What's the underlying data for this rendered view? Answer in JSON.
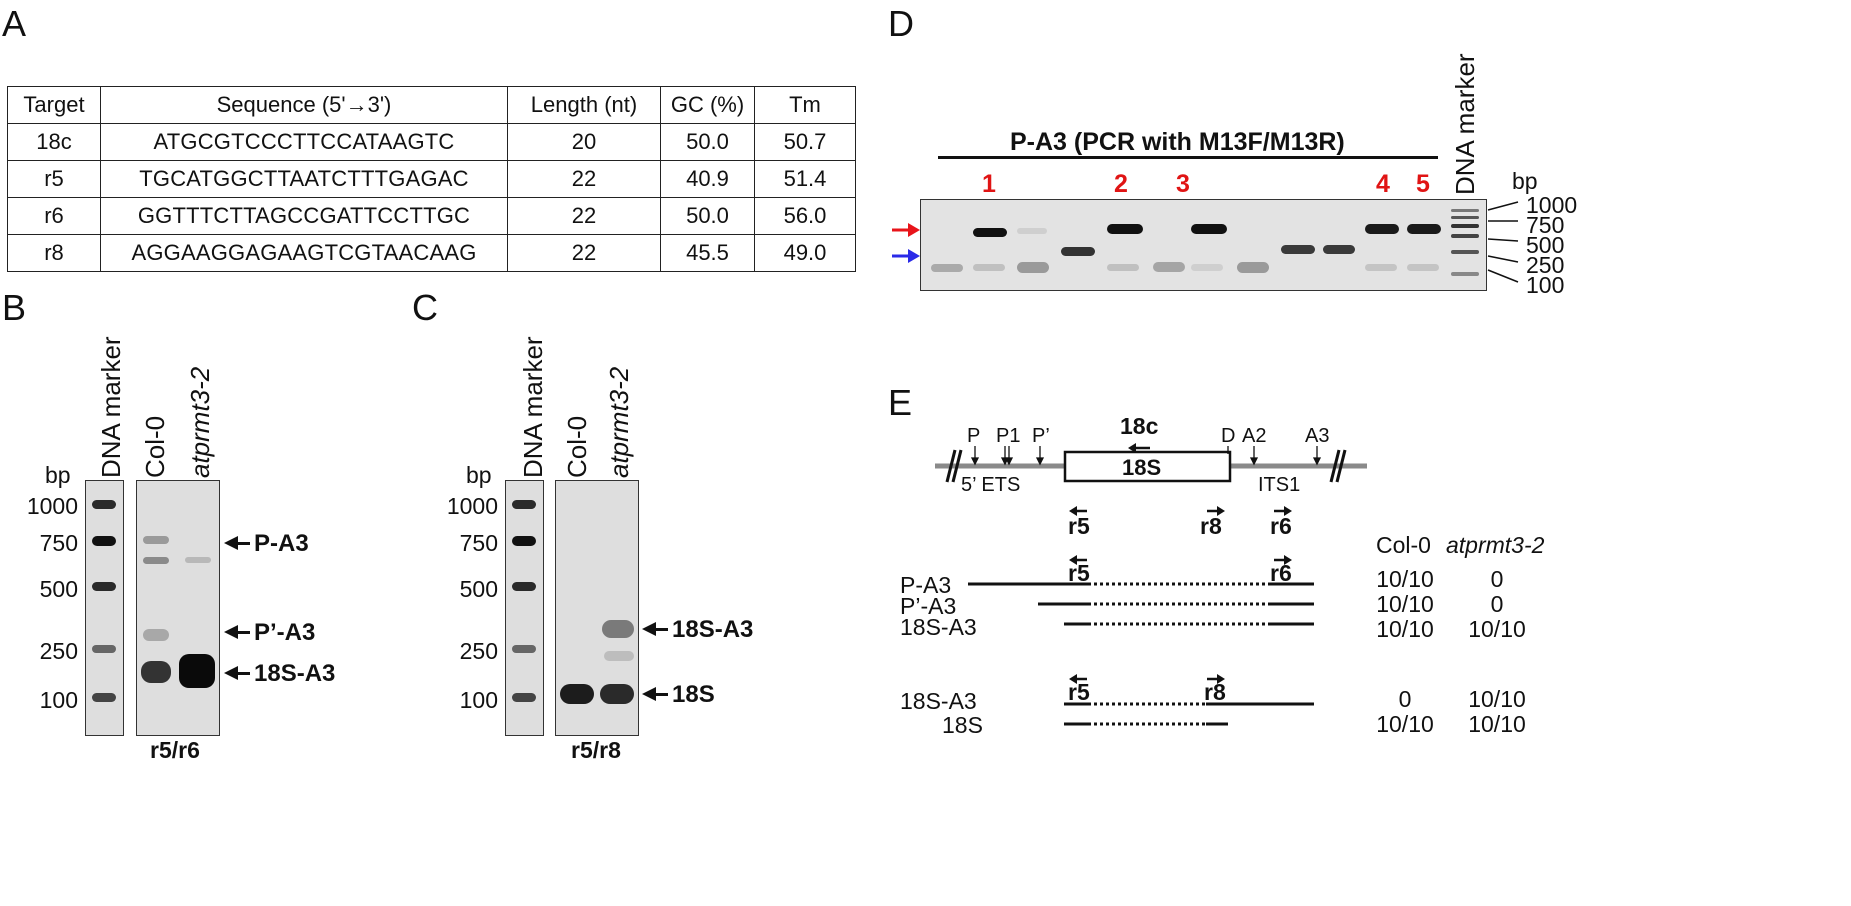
{
  "panels": {
    "A": "A",
    "B": "B",
    "C": "C",
    "D": "D",
    "E": "E"
  },
  "table": {
    "headers": [
      "Target",
      "Sequence (5'→3')",
      "Length (nt)",
      "GC (%)",
      "Tm"
    ],
    "rows": [
      [
        "18c",
        "ATGCGTCCCTTCCATAAGTC",
        "20",
        "50.0",
        "50.7"
      ],
      [
        "r5",
        "TGCATGGCTTAATCTTTGAGAC",
        "22",
        "40.9",
        "51.4"
      ],
      [
        "r6",
        "GGTTTCTTAGCCGATTCCTTGC",
        "22",
        "50.0",
        "56.0"
      ],
      [
        "r8",
        "AGGAAGGAGAAGTCGTAACAAG",
        "22",
        "45.5",
        "49.0"
      ]
    ]
  },
  "gel_common": {
    "marker_label": "DNA marker",
    "bp_label": "bp",
    "ladder": [
      "1000",
      "750",
      "500",
      "250",
      "100"
    ],
    "lane1": "Col-0",
    "lane2": "atprmt3-2"
  },
  "panel_b": {
    "bands": [
      "P-A3",
      "P’-A3",
      "18S-A3"
    ],
    "primer_pair": "r5/r6"
  },
  "panel_c": {
    "bands": [
      "18S-A3",
      "18S"
    ],
    "primer_pair": "r5/r8"
  },
  "panel_d": {
    "title": "P-A3 (PCR with M13F/M13R)",
    "lane_numbers": [
      "1",
      "2",
      "3",
      "4",
      "5"
    ],
    "marker_label": "DNA marker",
    "bp_label": "bp",
    "ladder": [
      "1000",
      "750",
      "500",
      "250",
      "100"
    ],
    "arrow_colors": {
      "upper": "#e8141a",
      "lower": "#2a2ae8"
    }
  },
  "panel_e": {
    "sites": [
      "P",
      "P1",
      "P’",
      "D",
      "A2",
      "A3"
    ],
    "probe": "18c",
    "gene_box": "18S",
    "region_left": "5’ ETS",
    "region_right": "ITS1",
    "primers": [
      "r5",
      "r8",
      "r6"
    ],
    "col_headers": [
      "Col-0",
      "atprmt3-2"
    ],
    "rows": [
      {
        "name": "P-A3",
        "col0": "10/10",
        "mut": "0"
      },
      {
        "name": "P’-A3",
        "col0": "10/10",
        "mut": "0"
      },
      {
        "name": "18S-A3",
        "col0": "10/10",
        "mut": "10/10"
      },
      {
        "name": "18S-A3",
        "col0": "0",
        "mut": "10/10"
      },
      {
        "name": "18S",
        "col0": "10/10",
        "mut": "10/10"
      }
    ],
    "group_primers": [
      [
        "r5",
        "r6"
      ],
      [
        "r5",
        "r8"
      ]
    ]
  }
}
